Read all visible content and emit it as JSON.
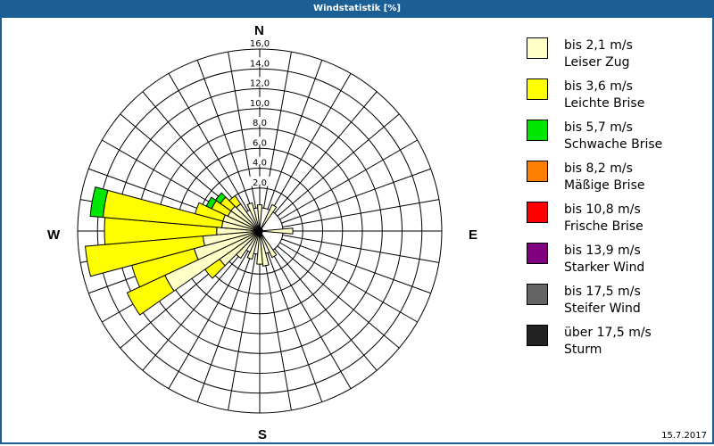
{
  "window": {
    "title": "Windstatistik [%]"
  },
  "compass": {
    "north": "N",
    "east": "E",
    "south": "S",
    "west": "W"
  },
  "footer": {
    "date": "15.7.2017"
  },
  "legend": [
    {
      "range": "bis 2,1 m/s",
      "name": "Leiser Zug",
      "color": "#ffffc8"
    },
    {
      "range": "bis 3,6 m/s",
      "name": "Leichte Brise",
      "color": "#ffff00"
    },
    {
      "range": "bis 5,7 m/s",
      "name": "Schwache Brise",
      "color": "#00e600"
    },
    {
      "range": "bis 8,2 m/s",
      "name": "Mäßige Brise",
      "color": "#ff8000"
    },
    {
      "range": "bis 10,8 m/s",
      "name": "Frische Brise",
      "color": "#ff0000"
    },
    {
      "range": "bis 13,9 m/s",
      "name": "Starker Wind",
      "color": "#800080"
    },
    {
      "range": "bis 17,5 m/s",
      "name": "Steifer Wind",
      "color": "#646464"
    },
    {
      "range": "über 17,5 m/s",
      "name": "Sturm",
      "color": "#222222"
    }
  ],
  "chart_data": {
    "type": "wind-rose",
    "title": "Windstatistik [%]",
    "radial_ticks": [
      "2,0",
      "4,0",
      "6,0",
      "8,0",
      "10,0",
      "12,0",
      "14,0",
      "16,0"
    ],
    "rmax": 16.0,
    "sector_width_deg": 10,
    "grid": true,
    "legend_position": "right",
    "series_names": [
      "bis 2,1 m/s",
      "bis 3,6 m/s",
      "bis 5,7 m/s"
    ],
    "sectors": [
      {
        "dir": 0,
        "cum": [
          0.3,
          0.3,
          0.3
        ]
      },
      {
        "dir": 30,
        "cum": [
          0.6,
          0.6,
          0.6
        ]
      },
      {
        "dir": 90,
        "cum": [
          1.0,
          1.0,
          1.0
        ]
      },
      {
        "dir": 150,
        "cum": [
          0.6,
          0.6,
          0.6
        ]
      },
      {
        "dir": 170,
        "cum": [
          1.2,
          1.2,
          1.2
        ]
      },
      {
        "dir": 180,
        "cum": [
          1.0,
          1.0,
          1.0
        ]
      },
      {
        "dir": 200,
        "cum": [
          0.6,
          0.6,
          0.6
        ]
      },
      {
        "dir": 220,
        "cum": [
          1.0,
          1.0,
          1.0
        ]
      },
      {
        "dir": 230,
        "cum": [
          2.6,
          4.4,
          4.4
        ]
      },
      {
        "dir": 240,
        "cum": [
          8.2,
          12.4,
          12.4
        ]
      },
      {
        "dir": 250,
        "cum": [
          4.5,
          11.0,
          11.0
        ]
      },
      {
        "dir": 260,
        "cum": [
          3.4,
          15.3,
          15.3
        ]
      },
      {
        "dir": 270,
        "cum": [
          2.0,
          13.3,
          13.3
        ]
      },
      {
        "dir": 280,
        "cum": [
          1.5,
          13.5,
          14.8
        ]
      },
      {
        "dir": 290,
        "cum": [
          1.5,
          4.4,
          4.4
        ]
      },
      {
        "dir": 300,
        "cum": [
          1.2,
          3.0,
          3.6
        ]
      },
      {
        "dir": 310,
        "cum": [
          1.2,
          2.5,
          3.1
        ]
      },
      {
        "dir": 320,
        "cum": [
          1.0,
          2.0,
          2.0
        ]
      },
      {
        "dir": 340,
        "cum": [
          0.6,
          0.6,
          0.6
        ]
      }
    ]
  }
}
